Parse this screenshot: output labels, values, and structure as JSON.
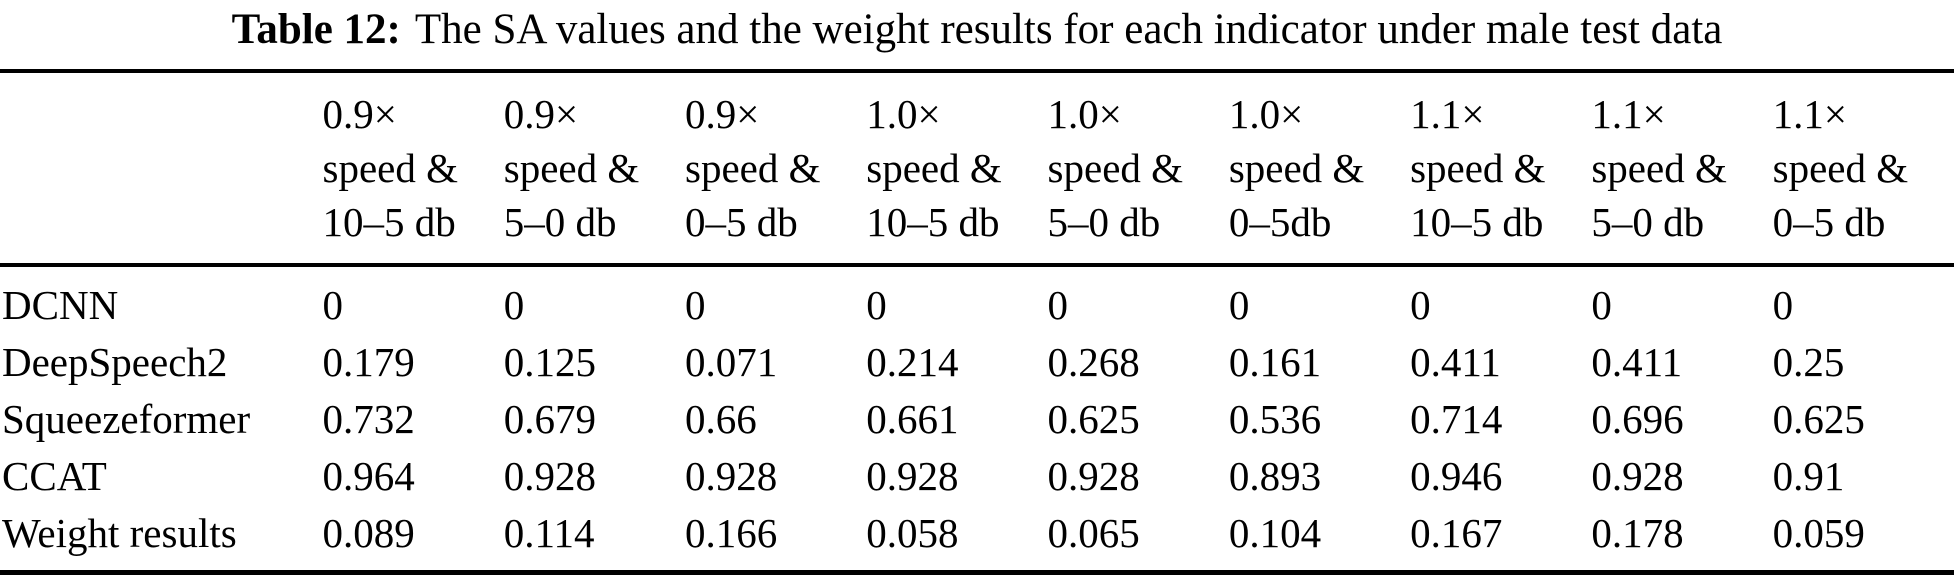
{
  "caption": {
    "label": "Table 12:",
    "text": "The SA values and the weight results for each indicator under male test data"
  },
  "chart_data": {
    "type": "table",
    "title": "Table 12: The SA values and the weight results for each indicator under male test data",
    "columns": [
      "0.9×\nspeed &\n10–5 db",
      "0.9×\nspeed &\n5–0 db",
      "0.9×\nspeed &\n0–5 db",
      "1.0×\nspeed &\n10–5 db",
      "1.0×\nspeed &\n5–0 db",
      "1.0×\nspeed &\n0–5db",
      "1.1×\nspeed &\n10–5 db",
      "1.1×\nspeed &\n5–0 db",
      "1.1×\nspeed &\n0–5 db"
    ],
    "rows": [
      {
        "label": "DCNN",
        "values": [
          "0",
          "0",
          "0",
          "0",
          "0",
          "0",
          "0",
          "0",
          "0"
        ]
      },
      {
        "label": "DeepSpeech2",
        "values": [
          "0.179",
          "0.125",
          "0.071",
          "0.214",
          "0.268",
          "0.161",
          "0.411",
          "0.411",
          "0.25"
        ]
      },
      {
        "label": "Squeezeformer",
        "values": [
          "0.732",
          "0.679",
          "0.66",
          "0.661",
          "0.625",
          "0.536",
          "0.714",
          "0.696",
          "0.625"
        ]
      },
      {
        "label": "CCAT",
        "values": [
          "0.964",
          "0.928",
          "0.928",
          "0.928",
          "0.928",
          "0.893",
          "0.946",
          "0.928",
          "0.91"
        ]
      },
      {
        "label": "Weight results",
        "values": [
          "0.089",
          "0.114",
          "0.166",
          "0.058",
          "0.065",
          "0.104",
          "0.167",
          "0.178",
          "0.059"
        ]
      }
    ],
    "text_color": "#000000",
    "background_color": "#ffffff",
    "rule_color": "#000000"
  }
}
